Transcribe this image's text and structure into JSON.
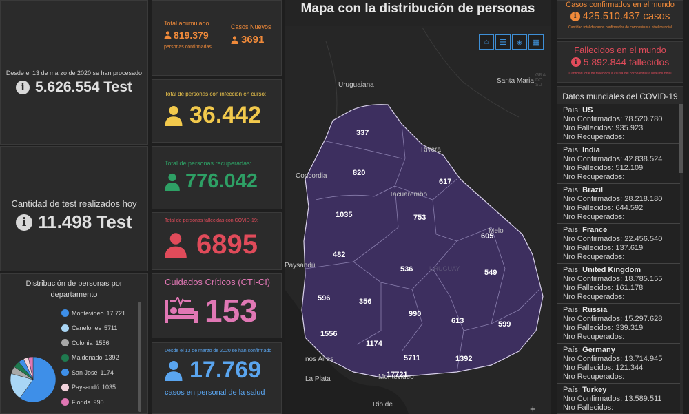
{
  "tests_total": {
    "caption": "Desde el 13 de marzo de 2020 se han procesado",
    "value": "5.626.554 Test"
  },
  "tests_today": {
    "caption": "Cantidad de test realizados hoy",
    "value": "11.498 Test"
  },
  "accumulated": {
    "label": "Total acumulado",
    "value": "819.379",
    "sub": "personas confirmadas"
  },
  "new_cases": {
    "label": "Casos Nuevos",
    "value": "3691"
  },
  "active": {
    "label": "Total de personas con infección en curso:",
    "value": "36.442"
  },
  "recovered": {
    "label": "Total de personas recuperadas:",
    "value": "776.042"
  },
  "deceased": {
    "label": "Total de personas fallecidas con COVID-19:",
    "value": "6895"
  },
  "critical": {
    "label": "Cuidados Críticos (CTI-CI)",
    "value": "153"
  },
  "health_staff": {
    "caption": "Desde el 13 de marzo de 2020 se han confirmado",
    "value": "17.769",
    "sub": "casos en personal de la salud"
  },
  "distribution": {
    "title": "Distribución de personas por departamento",
    "items": [
      {
        "name": "Montevideo",
        "value": "17.721",
        "color": "#3e8fe8"
      },
      {
        "name": "Canelones",
        "value": "5711",
        "color": "#a9d6f5"
      },
      {
        "name": "Colonia",
        "value": "1556",
        "color": "#a8a8a8"
      },
      {
        "name": "Maldonado",
        "value": "1392",
        "color": "#1f7a4f"
      },
      {
        "name": "San José",
        "value": "1174",
        "color": "#3e8fe8"
      },
      {
        "name": "Paysandú",
        "value": "1035",
        "color": "#f2d3dc"
      },
      {
        "name": "Florida",
        "value": "990",
        "color": "#e077b4"
      }
    ]
  },
  "map": {
    "title": "Mapa con la distribución de personas",
    "places": [
      "Uruguaiana",
      "Santa Maria",
      "Rivera",
      "Concordia",
      "Tacuarembo",
      "Melo",
      "Paysandú",
      "URUGUAY",
      "nos Aires",
      "La Plata",
      "Montevideo",
      "Rio de",
      "GRA DO SU"
    ],
    "counts": [
      "337",
      "820",
      "617",
      "1035",
      "753",
      "605",
      "482",
      "536",
      "549",
      "596",
      "356",
      "990",
      "613",
      "599",
      "1556",
      "1174",
      "5711",
      "1392",
      "17721"
    ]
  },
  "world_confirmed": {
    "label": "Casos confirmados en el mundo",
    "value": "425.510.437 casos",
    "sub": "Cantidad total de casos confirmados de coronavirus a nivel mundial"
  },
  "world_deaths": {
    "label": "Fallecidos en el mundo",
    "value": "5.892.844 fallecidos",
    "sub": "Cantidad total de fallecidos a causa del coronavirus a nivel mundial"
  },
  "world_list": {
    "title": "Datos mundiales del COVID-19",
    "labels": {
      "country": "País:",
      "confirmed": "Nro Confirmados:",
      "deaths": "Nro Fallecidos:",
      "recovered": "Nro Recuperados:"
    },
    "countries": [
      {
        "name": "US",
        "confirmed": "78.520.780",
        "deaths": "935.923",
        "recovered": ""
      },
      {
        "name": "India",
        "confirmed": "42.838.524",
        "deaths": "512.109",
        "recovered": ""
      },
      {
        "name": "Brazil",
        "confirmed": "28.218.180",
        "deaths": "644.592",
        "recovered": ""
      },
      {
        "name": "France",
        "confirmed": "22.456.540",
        "deaths": "137.619",
        "recovered": ""
      },
      {
        "name": "United Kingdom",
        "confirmed": "18.785.155",
        "deaths": "161.178",
        "recovered": ""
      },
      {
        "name": "Russia",
        "confirmed": "15.297.628",
        "deaths": "339.319",
        "recovered": ""
      },
      {
        "name": "Germany",
        "confirmed": "13.714.945",
        "deaths": "121.344",
        "recovered": ""
      },
      {
        "name": "Turkey",
        "confirmed": "13.589.511",
        "deaths": "",
        "recovered": ""
      }
    ]
  }
}
